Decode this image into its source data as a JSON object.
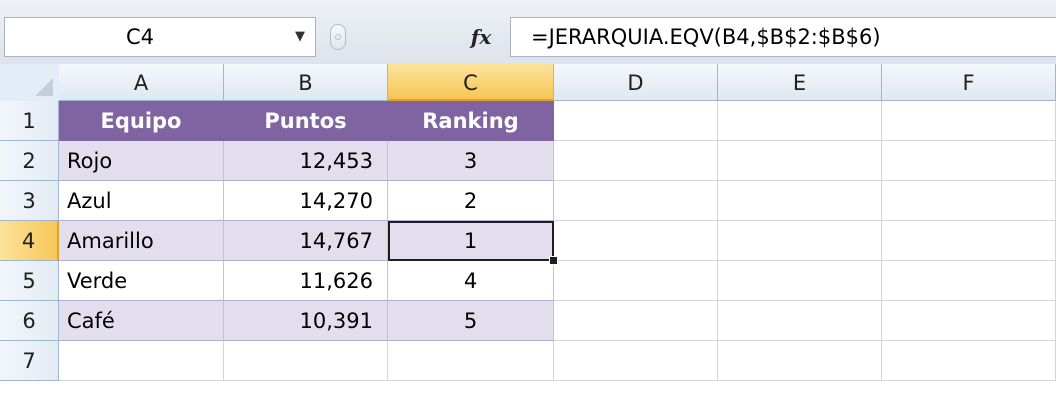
{
  "formula_bar": {
    "name_box": "C4",
    "fx_label": "fx",
    "formula": "=JERARQUIA.EQV(B4,$B$2:$B$6)"
  },
  "columns": [
    "A",
    "B",
    "C",
    "D",
    "E",
    "F"
  ],
  "rows": [
    "1",
    "2",
    "3",
    "4",
    "5",
    "6",
    "7"
  ],
  "active_cell": {
    "column": "C",
    "row": "4"
  },
  "table": {
    "headers": [
      "Equipo",
      "Puntos",
      "Ranking"
    ],
    "rows": [
      [
        "Rojo",
        "12,453",
        "3"
      ],
      [
        "Azul",
        "14,270",
        "2"
      ],
      [
        "Amarillo",
        "14,767",
        "1"
      ],
      [
        "Verde",
        "11,626",
        "4"
      ],
      [
        "Café",
        "10,391",
        "5"
      ]
    ]
  },
  "colors": {
    "table_header": "#8064a2",
    "band_row": "#e3deee",
    "active_header": "#f7c657"
  },
  "icons": {
    "name_box_dropdown": "chevron-down-icon",
    "formula_function": "function-fx-icon"
  }
}
